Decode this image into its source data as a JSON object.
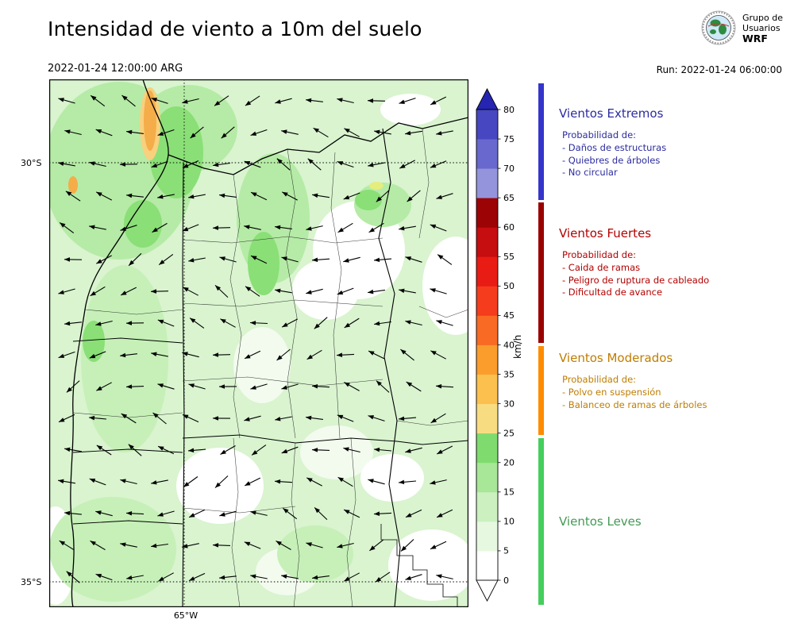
{
  "header": {
    "title": "Intensidad de viento a 10m del suelo",
    "valid_time": "2022-01-24 12:00:00 ARG",
    "run_time": "Run: 2022-01-24 06:00:00",
    "logo": {
      "line1": "Grupo de",
      "line2": "Usuarios",
      "line3": "WRF"
    }
  },
  "map": {
    "lat_labels": [
      "30°S",
      "35°S"
    ],
    "lon_label": "65°W"
  },
  "colorbar": {
    "unit": "km/h",
    "range": [
      0,
      80
    ],
    "ticks": [
      0,
      5,
      10,
      15,
      20,
      25,
      30,
      35,
      40,
      45,
      50,
      55,
      60,
      65,
      70,
      75,
      80
    ],
    "segment_colors_low_to_high": [
      "#ffffff",
      "#e6f8e0",
      "#ccf0c0",
      "#a8e698",
      "#7fdb6e",
      "#f8dc81",
      "#fbc04e",
      "#fb9d2c",
      "#f96a24",
      "#f53c1c",
      "#e81c14",
      "#c60d10",
      "#9c0305",
      "#9494dc",
      "#6868ce",
      "#4747c2"
    ],
    "over_color": "#2525b2",
    "under_color": "#ffffff"
  },
  "legend": {
    "sections": [
      {
        "title": "Vientos Extremos",
        "subtitle": "Probabilidad de:",
        "items": [
          "- Daños de estructuras",
          "- Quiebres de árboles",
          "- No circular"
        ],
        "text_color": "#2c2ca0",
        "bar_color": "#3535cc",
        "range_kmh": [
          65,
          80
        ]
      },
      {
        "title": "Vientos Fuertes",
        "subtitle": "Probabilidad de:",
        "items": [
          "- Caida de ramas",
          "- Peligro de ruptura de cableado",
          "- Dificultad de avance"
        ],
        "text_color": "#b30000",
        "bar_color": "#990000",
        "range_kmh": [
          40,
          65
        ]
      },
      {
        "title": "Vientos Moderados",
        "subtitle": "Probabilidad de:",
        "items": [
          "- Polvo en suspensión",
          "- Balanceo de ramas de árboles"
        ],
        "text_color": "#bf7d00",
        "bar_color": "#ff8c00",
        "range_kmh": [
          25,
          40
        ]
      },
      {
        "title": "Vientos Leves",
        "subtitle": "",
        "items": [],
        "text_color": "#449a55",
        "bar_color": "#44cf5c",
        "range_kmh": [
          0,
          25
        ]
      }
    ]
  },
  "chart_data": {
    "type": "heatmap",
    "title": "Intensidad de viento a 10m del suelo",
    "valid_time": "2022-01-24 12:00:00 ARG",
    "run": "Run: 2022-01-24 06:00:00",
    "variable": "wind speed at 10 m above ground",
    "unit": "km/h",
    "colorbar_ticks": [
      0,
      5,
      10,
      15,
      20,
      25,
      30,
      35,
      40,
      45,
      50,
      55,
      60,
      65,
      70,
      75,
      80
    ],
    "colorbar_range": [
      0,
      80
    ],
    "y_axis_ticks": [
      "30°S",
      "35°S"
    ],
    "x_axis_ticks": [
      "65°W"
    ],
    "overlay": "wind-direction quiver arrows pointing mostly westward",
    "wind_categories": [
      {
        "name": "Vientos Leves",
        "range_kmh": [
          0,
          25
        ]
      },
      {
        "name": "Vientos Moderados",
        "range_kmh": [
          25,
          40
        ]
      },
      {
        "name": "Vientos Fuertes",
        "range_kmh": [
          40,
          65
        ]
      },
      {
        "name": "Vientos Extremos",
        "range_kmh": [
          65,
          80
        ]
      }
    ],
    "values_summary": "Shading mostly 0-25 km/h (light greens) across the mapped region; isolated 25-40 km/h orange patches in the northwest near 30°S"
  }
}
